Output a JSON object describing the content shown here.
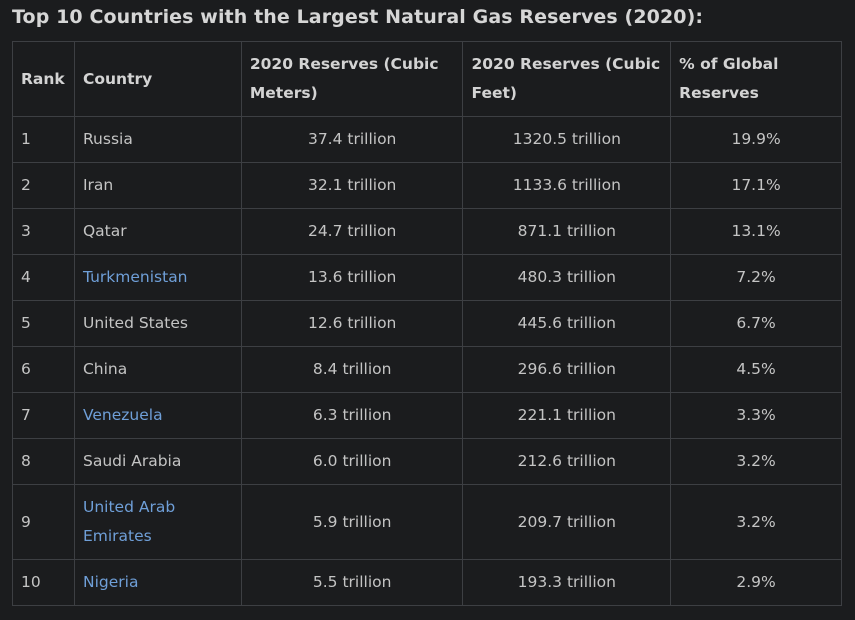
{
  "title": "Top 10 Countries with the Largest Natural Gas Reserves (2020):",
  "table": {
    "headers": [
      "Rank",
      "Country",
      "2020 Reserves (Cubic Meters)",
      "2020 Reserves (Cubic Feet)",
      "% of Global Reserves"
    ],
    "rows": [
      {
        "rank": "1",
        "country": "Russia",
        "m3": "37.4 trillion",
        "ft3": "1320.5 trillion",
        "pct": "19.9%"
      },
      {
        "rank": "2",
        "country": "Iran",
        "m3": "32.1 trillion",
        "ft3": "1133.6 trillion",
        "pct": "17.1%"
      },
      {
        "rank": "3",
        "country": "Qatar",
        "m3": "24.7 trillion",
        "ft3": "871.1 trillion",
        "pct": "13.1%"
      },
      {
        "rank": "4",
        "country": "Turkmenistan",
        "m3": "13.6 trillion",
        "ft3": "480.3 trillion",
        "pct": "7.2%"
      },
      {
        "rank": "5",
        "country": "United States",
        "m3": "12.6 trillion",
        "ft3": "445.6 trillion",
        "pct": "6.7%"
      },
      {
        "rank": "6",
        "country": "China",
        "m3": "8.4 trillion",
        "ft3": "296.6 trillion",
        "pct": "4.5%"
      },
      {
        "rank": "7",
        "country": "Venezuela",
        "m3": "6.3 trillion",
        "ft3": "221.1 trillion",
        "pct": "3.3%"
      },
      {
        "rank": "8",
        "country": "Saudi Arabia",
        "m3": "6.0 trillion",
        "ft3": "212.6 trillion",
        "pct": "3.2%"
      },
      {
        "rank": "9",
        "country": "United Arab Emirates",
        "m3": "5.9 trillion",
        "ft3": "209.7 trillion",
        "pct": "3.2%"
      },
      {
        "rank": "10",
        "country": "Nigeria",
        "m3": "5.5 trillion",
        "ft3": "193.3 trillion",
        "pct": "2.9%"
      }
    ]
  },
  "colors": {
    "background": "#1b1c1e",
    "border": "#3d3f43",
    "text": "#c4c4c4",
    "link": "#6f9fd8"
  }
}
